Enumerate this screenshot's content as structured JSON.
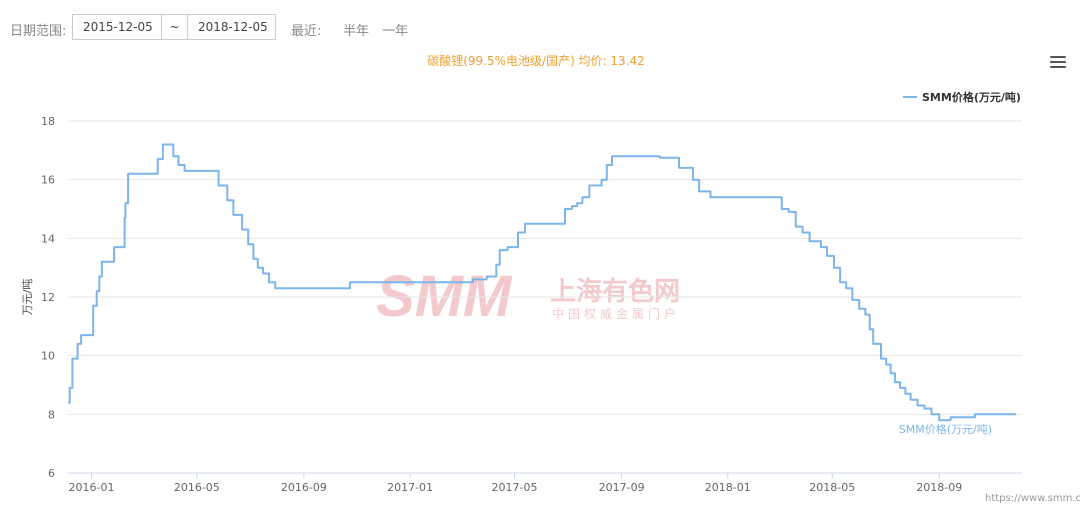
{
  "toolbar": {
    "date_range_label": "日期范围:",
    "start_date": "2015-12-05",
    "range_sep": "~",
    "end_date": "2018-12-05",
    "recent_label": "最近:",
    "half_year": "半年",
    "one_year": "一年"
  },
  "menu_icon": "hamburger-menu-icon",
  "watermark": {
    "logo": "SMM",
    "cn_name": "上海有色网",
    "cn_sub": "中国权威金属门户"
  },
  "footer_url": "https://www.smm.cn",
  "colors": {
    "line": "#7cb5ec",
    "title": "#f0a030",
    "watermark": "#f3c9cb"
  },
  "chart_data": {
    "type": "line",
    "title": "碳酸锂(99.5%电池级/国产) 均价: 13.42",
    "ylabel": "万元/吨",
    "xlabel": "",
    "ylim": [
      6,
      18
    ],
    "yticks": [
      "6",
      "8",
      "10",
      "12",
      "14",
      "16",
      "18"
    ],
    "xticks": [
      {
        "label": "2016-01",
        "date": "2016-01-01"
      },
      {
        "label": "2016-05",
        "date": "2016-05-01"
      },
      {
        "label": "2016-09",
        "date": "2016-09-01"
      },
      {
        "label": "2017-01",
        "date": "2017-01-01"
      },
      {
        "label": "2017-05",
        "date": "2017-05-01"
      },
      {
        "label": "2017-09",
        "date": "2017-09-01"
      },
      {
        "label": "2018-01",
        "date": "2018-01-01"
      },
      {
        "label": "2018-05",
        "date": "2018-05-01"
      },
      {
        "label": "2018-09",
        "date": "2018-09-01"
      }
    ],
    "x_range": [
      "2015-12-05",
      "2018-12-05"
    ],
    "grid": true,
    "legend_position": "top-right",
    "series": [
      {
        "name": "SMM价格(万元/吨)",
        "end_label": "SMM价格(万元/吨)",
        "points": [
          [
            "2015-12-05",
            8.4
          ],
          [
            "2015-12-07",
            8.9
          ],
          [
            "2015-12-10",
            9.9
          ],
          [
            "2015-12-16",
            10.4
          ],
          [
            "2015-12-20",
            10.7
          ],
          [
            "2016-01-03",
            11.7
          ],
          [
            "2016-01-07",
            12.2
          ],
          [
            "2016-01-10",
            12.7
          ],
          [
            "2016-01-13",
            13.2
          ],
          [
            "2016-01-27",
            13.7
          ],
          [
            "2016-02-08",
            14.7
          ],
          [
            "2016-02-09",
            15.2
          ],
          [
            "2016-02-12",
            16.2
          ],
          [
            "2016-03-17",
            16.7
          ],
          [
            "2016-03-23",
            17.2
          ],
          [
            "2016-04-04",
            16.8
          ],
          [
            "2016-04-10",
            16.5
          ],
          [
            "2016-04-17",
            16.3
          ],
          [
            "2016-05-26",
            15.8
          ],
          [
            "2016-06-05",
            15.3
          ],
          [
            "2016-06-12",
            14.8
          ],
          [
            "2016-06-22",
            14.3
          ],
          [
            "2016-06-29",
            13.8
          ],
          [
            "2016-07-05",
            13.3
          ],
          [
            "2016-07-10",
            13.0
          ],
          [
            "2016-07-16",
            12.8
          ],
          [
            "2016-07-23",
            12.5
          ],
          [
            "2016-07-30",
            12.3
          ],
          [
            "2016-10-24",
            12.5
          ],
          [
            "2017-03-14",
            12.6
          ],
          [
            "2017-03-30",
            12.7
          ],
          [
            "2017-04-10",
            13.1
          ],
          [
            "2017-04-14",
            13.6
          ],
          [
            "2017-04-23",
            13.7
          ],
          [
            "2017-05-05",
            14.2
          ],
          [
            "2017-05-13",
            14.5
          ],
          [
            "2017-06-28",
            15.0
          ],
          [
            "2017-07-06",
            15.1
          ],
          [
            "2017-07-12",
            15.2
          ],
          [
            "2017-07-18",
            15.4
          ],
          [
            "2017-07-26",
            15.8
          ],
          [
            "2017-08-09",
            16.0
          ],
          [
            "2017-08-15",
            16.5
          ],
          [
            "2017-08-21",
            16.8
          ],
          [
            "2017-09-20",
            16.8
          ],
          [
            "2017-10-15",
            16.75
          ],
          [
            "2017-11-06",
            16.4
          ],
          [
            "2017-11-22",
            16.0
          ],
          [
            "2017-11-29",
            15.6
          ],
          [
            "2017-12-12",
            15.4
          ],
          [
            "2018-03-04",
            15.0
          ],
          [
            "2018-03-12",
            14.9
          ],
          [
            "2018-03-20",
            14.4
          ],
          [
            "2018-03-28",
            14.2
          ],
          [
            "2018-04-05",
            13.9
          ],
          [
            "2018-04-18",
            13.7
          ],
          [
            "2018-04-25",
            13.4
          ],
          [
            "2018-05-03",
            13.0
          ],
          [
            "2018-05-10",
            12.5
          ],
          [
            "2018-05-17",
            12.3
          ],
          [
            "2018-05-24",
            11.9
          ],
          [
            "2018-06-01",
            11.6
          ],
          [
            "2018-06-08",
            11.4
          ],
          [
            "2018-06-13",
            10.9
          ],
          [
            "2018-06-17",
            10.4
          ],
          [
            "2018-06-26",
            9.9
          ],
          [
            "2018-07-02",
            9.7
          ],
          [
            "2018-07-07",
            9.4
          ],
          [
            "2018-07-12",
            9.1
          ],
          [
            "2018-07-18",
            8.9
          ],
          [
            "2018-07-24",
            8.7
          ],
          [
            "2018-07-30",
            8.5
          ],
          [
            "2018-08-07",
            8.3
          ],
          [
            "2018-08-15",
            8.2
          ],
          [
            "2018-08-23",
            8.0
          ],
          [
            "2018-09-01",
            7.8
          ],
          [
            "2018-09-14",
            7.9
          ],
          [
            "2018-10-12",
            8.0
          ],
          [
            "2018-11-28",
            8.0
          ]
        ]
      }
    ]
  }
}
